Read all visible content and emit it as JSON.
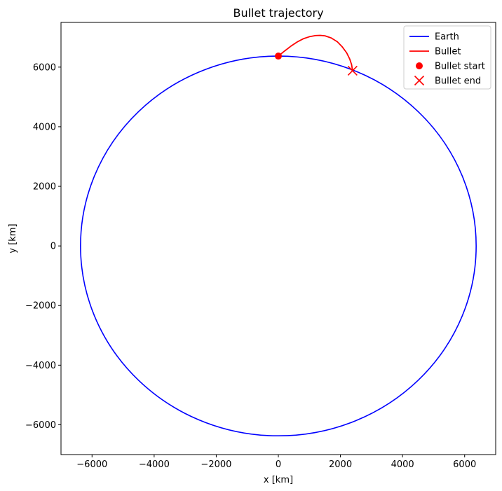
{
  "chart_data": {
    "type": "line",
    "title": "Bullet trajectory",
    "xlabel": "x [km]",
    "ylabel": "y [km]",
    "xlim": [
      -7000,
      7000
    ],
    "ylim": [
      -7000,
      7500
    ],
    "xticks": [
      -6000,
      -4000,
      -2000,
      0,
      2000,
      4000,
      6000
    ],
    "yticks": [
      -6000,
      -4000,
      -2000,
      0,
      2000,
      4000,
      6000
    ],
    "xtick_labels": [
      "−6000",
      "−4000",
      "−2000",
      "0",
      "2000",
      "4000",
      "6000"
    ],
    "ytick_labels": [
      "−6000",
      "−4000",
      "−2000",
      "0",
      "2000",
      "4000",
      "6000"
    ],
    "grid": false,
    "legend_position": "top-right",
    "series": [
      {
        "name": "Earth",
        "kind": "circle",
        "color": "#0000ff",
        "center": [
          0,
          0
        ],
        "radius": 6371
      },
      {
        "name": "Bullet",
        "kind": "line",
        "color": "#ff0000",
        "x": [
          0,
          200,
          400,
          600,
          800,
          1000,
          1200,
          1350,
          1500,
          1700,
          1900,
          2050,
          2200,
          2300,
          2360,
          2390
        ],
        "y": [
          6371,
          6540,
          6700,
          6840,
          6950,
          7020,
          7060,
          7065,
          7050,
          6980,
          6850,
          6690,
          6480,
          6270,
          6080,
          5880
        ]
      },
      {
        "name": "Bullet start",
        "kind": "marker",
        "marker": "circle",
        "color": "#ff0000",
        "x": [
          0
        ],
        "y": [
          6371
        ]
      },
      {
        "name": "Bullet end",
        "kind": "marker",
        "marker": "x",
        "color": "#ff0000",
        "x": [
          2390
        ],
        "y": [
          5880
        ]
      }
    ]
  }
}
